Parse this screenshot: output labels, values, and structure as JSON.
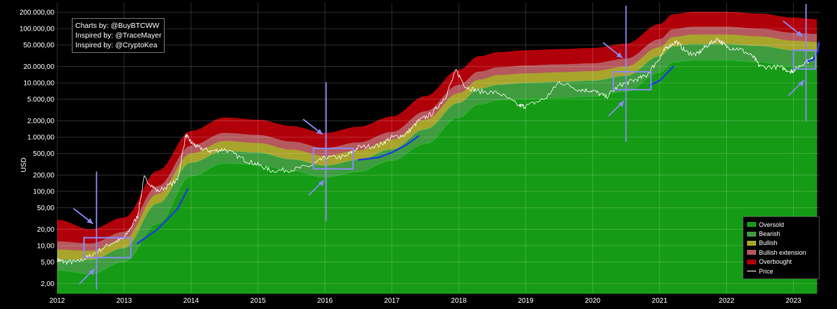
{
  "credits": [
    "Charts by: @BuyBTCWW",
    "Inspired by: @TraceMayer",
    "Inspired by: @CryptoKea"
  ],
  "colors": {
    "oversold": "#169b16",
    "bearish": "#3f9c3f",
    "bullish": "#a9a42b",
    "bullish_extension": "#b5595f",
    "overbought": "#b0000a",
    "price": "#ffffff",
    "annotation": "#8b8bf5",
    "trend": "#1f3fd9"
  },
  "chart_data": {
    "type": "area",
    "title": "",
    "xlabel": "",
    "ylabel": "USD",
    "yscale": "log",
    "ylim": [
      1.3,
      300000
    ],
    "xlim": [
      2012,
      2023.4
    ],
    "x_ticks": [
      "2012",
      "2013",
      "2014",
      "2015",
      "2016",
      "2017",
      "2018",
      "2019",
      "2020",
      "2021",
      "2022",
      "2023"
    ],
    "y_ticks": [
      {
        "value": 2,
        "label": "2,00"
      },
      {
        "value": 5,
        "label": "5,00"
      },
      {
        "value": 10,
        "label": "10,00"
      },
      {
        "value": 20,
        "label": "20,00"
      },
      {
        "value": 50,
        "label": "50,00"
      },
      {
        "value": 100,
        "label": "100,00"
      },
      {
        "value": 200,
        "label": "200,00"
      },
      {
        "value": 500,
        "label": "500,00"
      },
      {
        "value": 1000,
        "label": "1.000,00"
      },
      {
        "value": 2000,
        "label": "2.000,00"
      },
      {
        "value": 5000,
        "label": "5.000,00"
      },
      {
        "value": 10000,
        "label": "10.000,00"
      },
      {
        "value": 20000,
        "label": "20.000,00"
      },
      {
        "value": 50000,
        "label": "50.000,00"
      },
      {
        "value": 100000,
        "label": "100.000,00"
      },
      {
        "value": 200000,
        "label": "200.000,00"
      }
    ],
    "grid": true,
    "legend_position": "bottom-right",
    "legend": [
      "Oversold",
      "Bearish",
      "Bullish",
      "Bullish extension",
      "Overbought",
      "Price"
    ],
    "bands": {
      "x": [
        2012.0,
        2012.5,
        2013.0,
        2013.5,
        2014.0,
        2014.5,
        2015.0,
        2015.5,
        2016.0,
        2016.5,
        2017.0,
        2017.5,
        2018.0,
        2018.3,
        2018.6,
        2019.0,
        2019.5,
        2020.0,
        2020.5,
        2021.0,
        2021.2,
        2021.5,
        2022.0,
        2022.5,
        2023.0,
        2023.35
      ],
      "oversold_top": [
        3.5,
        3.0,
        5,
        25,
        190,
        330,
        310,
        240,
        180,
        230,
        370,
        750,
        2300,
        4000,
        4800,
        5100,
        5300,
        5600,
        6900,
        15500,
        24000,
        26000,
        26000,
        24000,
        20000,
        19000
      ],
      "bearish_top": [
        5.5,
        5.5,
        9,
        60,
        340,
        560,
        520,
        390,
        300,
        380,
        600,
        1400,
        4300,
        7800,
        9300,
        10000,
        10500,
        11000,
        13500,
        31000,
        47000,
        52000,
        52000,
        48000,
        40000,
        38000
      ],
      "bullish_top": [
        8.5,
        8.0,
        13,
        90,
        500,
        850,
        780,
        590,
        450,
        570,
        900,
        2100,
        6500,
        11500,
        14000,
        15000,
        15700,
        16500,
        20000,
        46000,
        70000,
        78000,
        78000,
        72000,
        60000,
        57000
      ],
      "ext_top": [
        12,
        11,
        18,
        125,
        700,
        1200,
        1100,
        830,
        630,
        800,
        1250,
        3000,
        9200,
        16200,
        19500,
        21000,
        22000,
        23000,
        28000,
        64000,
        98000,
        109000,
        109000,
        100000,
        84000,
        80000
      ],
      "ob_top": [
        30,
        20,
        33,
        240,
        1300,
        2300,
        2100,
        1600,
        1200,
        1550,
        2400,
        5700,
        17500,
        31000,
        37000,
        40000,
        42000,
        44000,
        53000,
        122000,
        185000,
        205000,
        205000,
        190000,
        160000,
        150000
      ]
    },
    "price": {
      "x": [
        2012.0,
        2012.1,
        2012.3,
        2012.5,
        2012.8,
        2013.0,
        2013.2,
        2013.3,
        2013.5,
        2013.8,
        2013.92,
        2014.0,
        2014.1,
        2014.3,
        2014.5,
        2014.8,
        2015.0,
        2015.2,
        2015.5,
        2015.8,
        2016.0,
        2016.3,
        2016.5,
        2016.8,
        2017.0,
        2017.2,
        2017.4,
        2017.6,
        2017.8,
        2017.96,
        2018.1,
        2018.3,
        2018.6,
        2018.9,
        2019.0,
        2019.3,
        2019.5,
        2019.8,
        2020.0,
        2020.2,
        2020.4,
        2020.6,
        2020.8,
        2021.0,
        2021.1,
        2021.25,
        2021.4,
        2021.55,
        2021.7,
        2021.87,
        2022.0,
        2022.2,
        2022.4,
        2022.5,
        2022.8,
        2022.95,
        2023.0,
        2023.15,
        2023.3
      ],
      "y": [
        5.5,
        5,
        5,
        6.5,
        11,
        13.5,
        35,
        180,
        100,
        160,
        1100,
        800,
        650,
        550,
        600,
        380,
        310,
        240,
        250,
        300,
        420,
        430,
        650,
        700,
        990,
        1100,
        2000,
        2700,
        5500,
        17000,
        8500,
        7000,
        6500,
        3800,
        3700,
        5200,
        10500,
        7500,
        7200,
        5500,
        9000,
        11000,
        13500,
        29000,
        45000,
        58000,
        37000,
        33000,
        48000,
        65000,
        46000,
        42000,
        30000,
        20000,
        19500,
        16500,
        16800,
        23000,
        28500
      ]
    },
    "trend_lines": [
      {
        "x": [
          2013.2,
          2013.5,
          2013.8,
          2013.95
        ],
        "y": [
          11,
          20,
          48,
          110
        ]
      },
      {
        "x": [
          2016.5,
          2016.8,
          2017.0,
          2017.2,
          2017.4
        ],
        "y": [
          380,
          420,
          520,
          700,
          1050
        ]
      },
      {
        "x": [
          2020.85,
          2021.0,
          2021.1,
          2021.2
        ],
        "y": [
          9000,
          11000,
          14500,
          20000
        ]
      },
      {
        "x": [
          2023.22,
          2023.3,
          2023.36,
          2023.38
        ],
        "y": [
          25000,
          27000,
          38000,
          55000
        ]
      }
    ],
    "annotation_boxes": [
      {
        "x0": 2012.4,
        "x1": 2013.1,
        "y0": 6,
        "y1": 14
      },
      {
        "x0": 2015.83,
        "x1": 2016.42,
        "y0": 260,
        "y1": 620
      },
      {
        "x0": 2020.31,
        "x1": 2020.87,
        "y0": 7500,
        "y1": 16000
      },
      {
        "x0": 2023.0,
        "x1": 2023.33,
        "y0": 18000,
        "y1": 40000
      }
    ]
  }
}
